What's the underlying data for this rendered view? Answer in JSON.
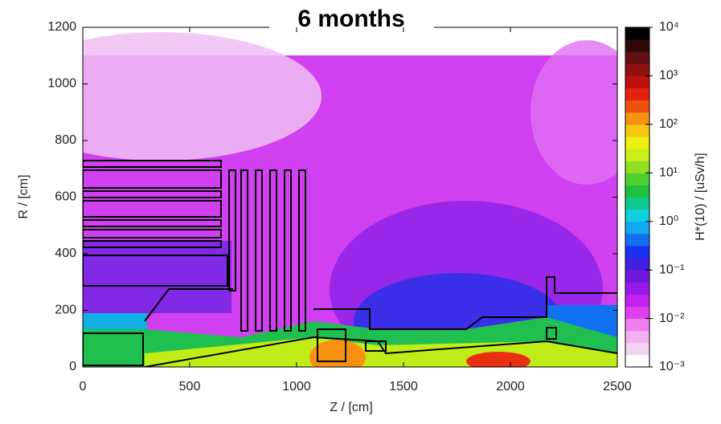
{
  "chart_data": {
    "type": "heatmap",
    "title": "6 months",
    "xlabel": "Z / [cm]",
    "ylabel": "R / [cm]",
    "xlim": [
      0,
      2500
    ],
    "xticks": [
      0,
      500,
      1000,
      1500,
      2000,
      2500
    ],
    "ylim": [
      0,
      1200
    ],
    "yticks": [
      0,
      200,
      400,
      600,
      800,
      1000,
      1200
    ],
    "colorbar": {
      "label": "H*(10) / [uSv/h]",
      "log": true,
      "lim": [
        0.001,
        10000
      ],
      "ticks": [
        {
          "value": 0.001,
          "label": "10⁻³"
        },
        {
          "value": 0.01,
          "label": "10⁻²"
        },
        {
          "value": 0.1,
          "label": "10⁻¹"
        },
        {
          "value": 1,
          "label": "10⁰"
        },
        {
          "value": 10,
          "label": "10¹"
        },
        {
          "value": 100,
          "label": "10²"
        },
        {
          "value": 1000,
          "label": "10³"
        },
        {
          "value": 10000,
          "label": "10⁴"
        }
      ],
      "colors": [
        "#ffffff",
        "#f2d4f2",
        "#f3b0f3",
        "#f080f0",
        "#e040f0",
        "#c020f0",
        "#9a18e8",
        "#6e18e0",
        "#4020e0",
        "#1a30f0",
        "#1070f0",
        "#10a8f0",
        "#10d0e0",
        "#10c890",
        "#20c040",
        "#50d030",
        "#90e020",
        "#c8f018",
        "#f0f010",
        "#f8c810",
        "#f89010",
        "#f05010",
        "#e82010",
        "#c01010",
        "#901010",
        "#601010",
        "#300808",
        "#000000"
      ]
    }
  }
}
